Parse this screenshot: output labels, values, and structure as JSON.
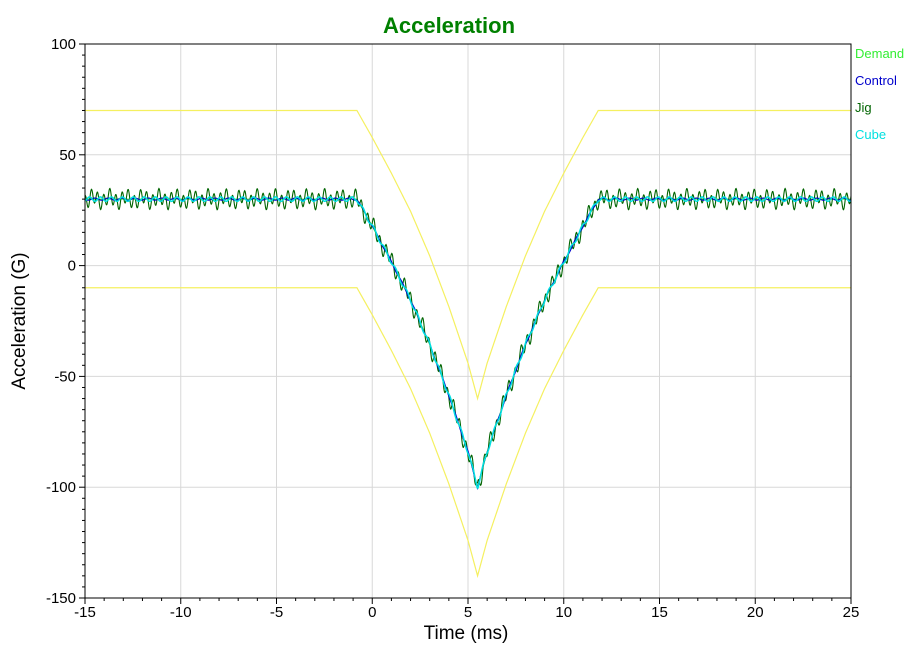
{
  "chart_data": {
    "type": "line",
    "title": "Acceleration",
    "xlabel": "Time (ms)",
    "ylabel": "Acceleration (G)",
    "xlim": [
      -15,
      25
    ],
    "ylim": [
      -150,
      100
    ],
    "x_ticks": [
      -15,
      -10,
      -5,
      0,
      5,
      10,
      15,
      20,
      25
    ],
    "x_tick_labels": [
      "-15",
      "-10",
      "-5",
      "0",
      "5",
      "10",
      "15",
      "20",
      "25"
    ],
    "y_ticks": [
      -150,
      -100,
      -50,
      0,
      50,
      100
    ],
    "y_tick_labels": [
      "-150",
      "-100",
      "-50",
      "0",
      "50",
      "100"
    ],
    "grid": true,
    "legend_position": "right",
    "colors": {
      "title": "#008000",
      "demand": "#33ee33",
      "control": "#0000cc",
      "jig": "#006400",
      "cube": "#00e0e0",
      "tolerance": "#f5f060",
      "grid": "#d8d8d8"
    },
    "series": [
      {
        "name": "Demand",
        "color": "#33ee33",
        "x": [
          -15,
          -0.8,
          0,
          1,
          2,
          3,
          4,
          5,
          5.5,
          6,
          7,
          8,
          9,
          10,
          11,
          11.8,
          25
        ],
        "y": [
          30,
          30,
          17.8,
          1.7,
          -15.5,
          -35.6,
          -58.5,
          -84.0,
          -100,
          -84.0,
          -58.5,
          -35.6,
          -15.5,
          1.7,
          17.8,
          30,
          30
        ]
      },
      {
        "name": "Control",
        "color": "#0000cc",
        "x": [
          -15,
          -0.8,
          0,
          1,
          2,
          3,
          4,
          5,
          5.5,
          6,
          7,
          8,
          9,
          10,
          11,
          11.8,
          25
        ],
        "y": [
          30,
          30,
          17.8,
          1.7,
          -15.5,
          -35.6,
          -58.5,
          -84.0,
          -100,
          -84.0,
          -58.5,
          -35.6,
          -15.5,
          1.7,
          17.8,
          30,
          30
        ]
      },
      {
        "name": "Jig",
        "color": "#006400",
        "x": [
          -15,
          -0.8,
          0,
          1,
          2,
          3,
          4,
          5,
          5.5,
          6,
          7,
          8,
          9,
          10,
          11,
          11.8,
          25
        ],
        "y": [
          30,
          30,
          17.8,
          1.7,
          -15.5,
          -35.6,
          -58.5,
          -84.0,
          -100,
          -84.0,
          -58.5,
          -35.6,
          -15.5,
          1.7,
          17.8,
          30,
          30
        ]
      },
      {
        "name": "Cube",
        "color": "#00e0e0",
        "x": [
          -15,
          -0.8,
          0,
          1,
          2,
          3,
          4,
          5,
          5.5,
          6,
          7,
          8,
          9,
          10,
          11,
          11.8,
          25
        ],
        "y": [
          30,
          30,
          17.8,
          1.7,
          -15.5,
          -35.6,
          -58.5,
          -84.0,
          -100,
          -84.0,
          -58.5,
          -35.6,
          -15.5,
          1.7,
          17.8,
          30,
          30
        ]
      }
    ],
    "tolerance_bands": [
      {
        "color": "#f5f060",
        "x": [
          -15,
          -0.8,
          0,
          1,
          2,
          3,
          4,
          5,
          5.5,
          6,
          7,
          8,
          9,
          10,
          11,
          11.8,
          25
        ],
        "y": [
          70,
          70,
          57.8,
          41.7,
          24.5,
          4.4,
          -18.5,
          -44.0,
          -60,
          -44.0,
          -18.5,
          4.4,
          24.5,
          41.7,
          57.8,
          70,
          70
        ]
      },
      {
        "color": "#f5f060",
        "x": [
          -15,
          -0.8,
          0,
          1,
          2,
          3,
          4,
          5,
          5.5,
          6,
          7,
          8,
          9,
          10,
          11,
          11.8,
          25
        ],
        "y": [
          -10,
          -10,
          -22.2,
          -38.3,
          -55.5,
          -75.6,
          -98.5,
          -124.0,
          -140,
          -124.0,
          -98.5,
          -75.6,
          -55.5,
          -38.3,
          -22.2,
          -10,
          -10
        ]
      }
    ]
  }
}
